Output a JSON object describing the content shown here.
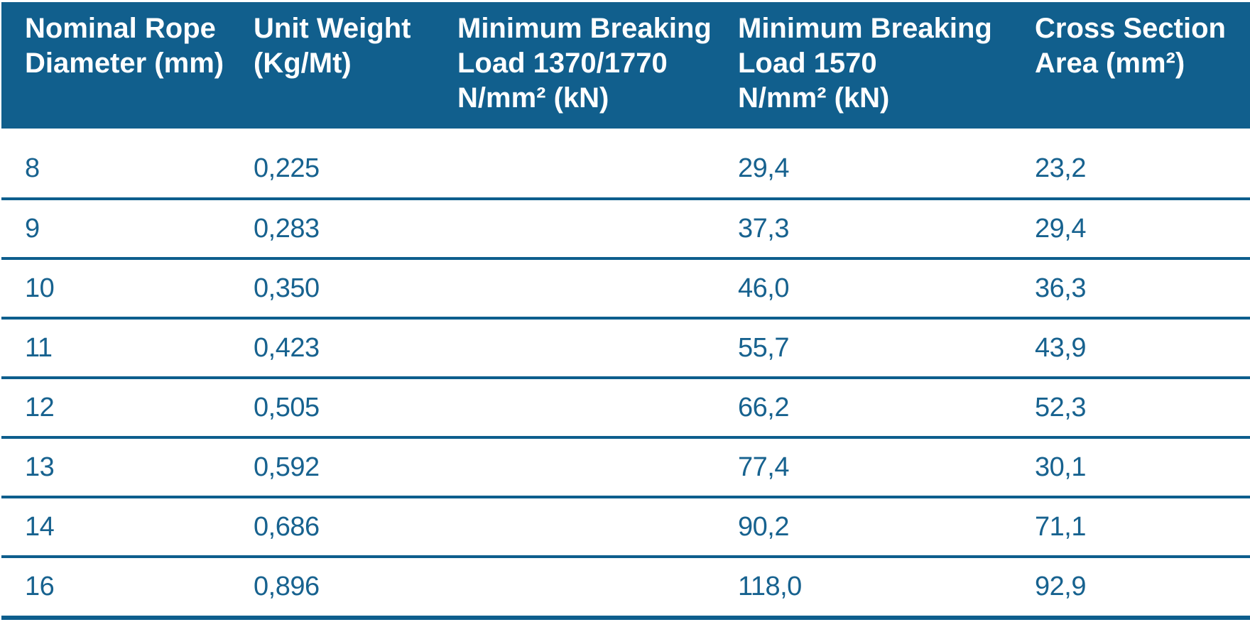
{
  "colors": {
    "header_bg": "#115F8D",
    "header_text": "#FFFFFF",
    "cell_text": "#17628F",
    "row_line": "#0D5E8D",
    "background": "#FFFFFF"
  },
  "table": {
    "columns": [
      {
        "label": "Nominal Rope Diameter (mm)",
        "lines": [
          "Nominal Rope",
          "Diameter (mm)"
        ]
      },
      {
        "label": "Unit Weight (Kg/Mt)",
        "lines": [
          "Unit Weight",
          "(Kg/Mt)"
        ]
      },
      {
        "label": "Minimum Breaking Load 1370/1770 N/mm² (kN)",
        "lines": [
          "Minimum Breaking",
          "Load 1370/1770",
          "N/mm² (kN)"
        ]
      },
      {
        "label": "Minimum Breaking Load 1570 N/mm² (kN)",
        "lines": [
          "Minimum Breaking",
          "Load 1570",
          "N/mm² (kN)"
        ]
      },
      {
        "label": "Cross Section Area (mm²)",
        "lines": [
          "Cross Section",
          "Area (mm²)"
        ]
      }
    ],
    "rows": [
      [
        "8",
        "0,225",
        "",
        "29,4",
        "23,2"
      ],
      [
        "9",
        "0,283",
        "",
        "37,3",
        "29,4"
      ],
      [
        "10",
        "0,350",
        "",
        "46,0",
        "36,3"
      ],
      [
        "11",
        "0,423",
        "",
        "55,7",
        "43,9"
      ],
      [
        "12",
        "0,505",
        "",
        "66,2",
        "52,3"
      ],
      [
        "13",
        "0,592",
        "",
        "77,4",
        "30,1"
      ],
      [
        "14",
        "0,686",
        "",
        "90,2",
        "71,1"
      ],
      [
        "16",
        "0,896",
        "",
        "118,0",
        "92,9"
      ]
    ]
  },
  "chart_data": {
    "type": "table",
    "columns": [
      "Nominal Rope Diameter (mm)",
      "Unit Weight (Kg/Mt)",
      "Minimum Breaking Load 1370/1770 N/mm² (kN)",
      "Minimum Breaking Load 1570 N/mm² (kN)",
      "Cross Section Area (mm²)"
    ],
    "rows": [
      [
        "8",
        "0,225",
        "",
        "29,4",
        "23,2"
      ],
      [
        "9",
        "0,283",
        "",
        "37,3",
        "29,4"
      ],
      [
        "10",
        "0,350",
        "",
        "46,0",
        "36,3"
      ],
      [
        "11",
        "0,423",
        "",
        "55,7",
        "43,9"
      ],
      [
        "12",
        "0,505",
        "",
        "66,2",
        "52,3"
      ],
      [
        "13",
        "0,592",
        "",
        "77,4",
        "30,1"
      ],
      [
        "14",
        "0,686",
        "",
        "90,2",
        "71,1"
      ],
      [
        "16",
        "0,896",
        "",
        "118,0",
        "92,9"
      ]
    ],
    "layout": {
      "header_background": "#115F8D",
      "header_text_color": "#FFFFFF",
      "body_text_color": "#17628F",
      "row_separator_color": "#0D5E8D",
      "grid": "horizontal-only",
      "empty_column_index": 2
    }
  }
}
